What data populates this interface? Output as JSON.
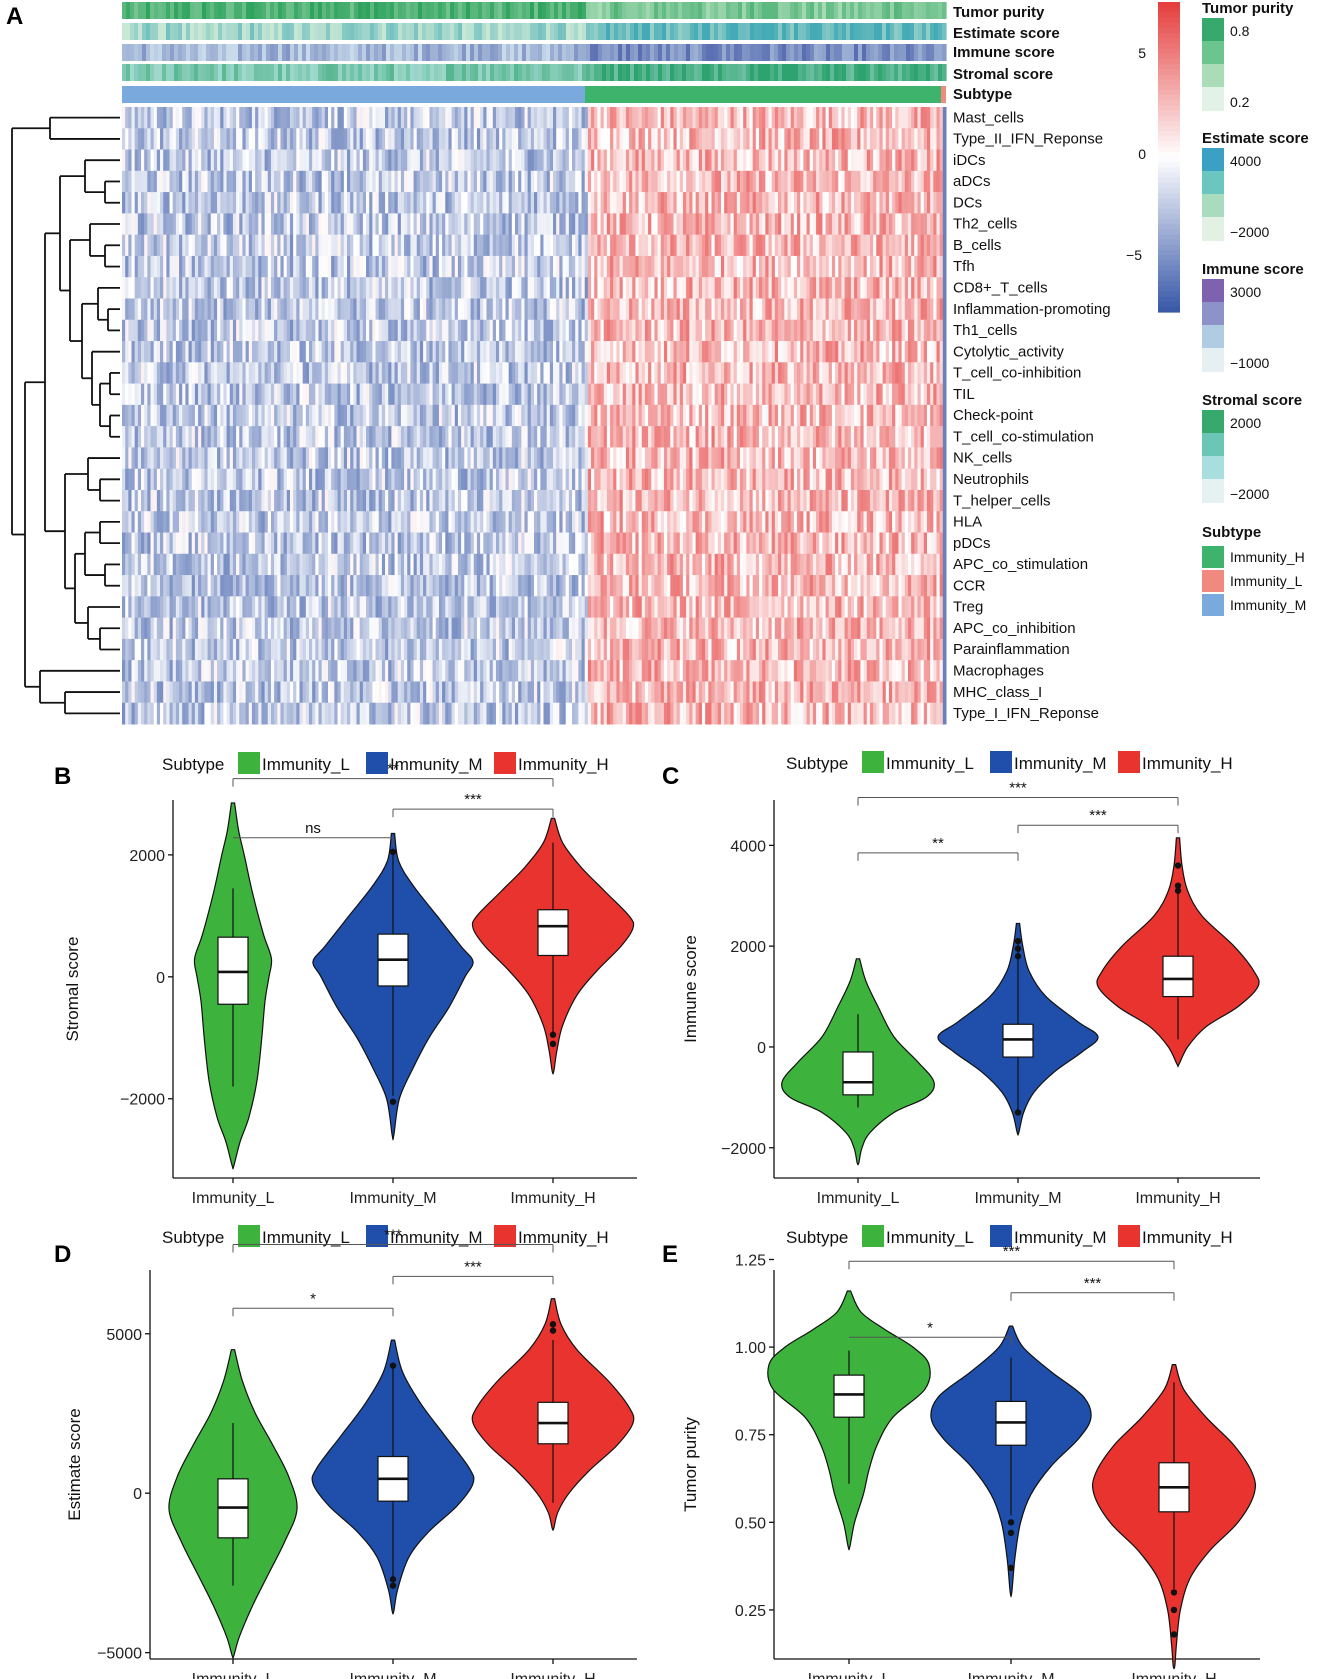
{
  "colors": {
    "immunity_l": "#3db33d",
    "immunity_m": "#1f4faa",
    "immunity_h": "#e8332f",
    "heat_low": "#3a5aa8",
    "heat_mid": "#ffffff",
    "heat_high": "#e5403f"
  },
  "panel_a": {
    "letter": "A",
    "annotation_tracks": [
      "Tumor purity",
      "Estimate score",
      "Immune score",
      "Stromal score",
      "Subtype"
    ],
    "rows": [
      "Mast_cells",
      "Type_II_IFN_Reponse",
      "iDCs",
      "aDCs",
      "DCs",
      "Th2_cells",
      "B_cells",
      "Tfh",
      "CD8+_T_cells",
      "Inflammation-promoting",
      "Th1_cells",
      "Cytolytic_activity",
      "T_cell_co-inhibition",
      "TIL",
      "Check-point",
      "T_cell_co-stimulation",
      "NK_cells",
      "Neutrophils",
      "T_helper_cells",
      "HLA",
      "pDCs",
      "APC_co_stimulation",
      "CCR",
      "Treg",
      "APC_co_inhibition",
      "Parainflammation",
      "Macrophages",
      "MHC_class_I",
      "Type_I_IFN_Reponse"
    ],
    "colorbar": {
      "ticks": [
        "5",
        "0",
        "−5"
      ]
    },
    "legends": [
      {
        "title": "Tumor purity",
        "ticks": [
          "0.8",
          "0.2"
        ],
        "colors": [
          "#38a96c",
          "#6cc48f",
          "#a9dcb7",
          "#e3f2e6"
        ]
      },
      {
        "title": "Estimate score",
        "ticks": [
          "4000",
          "−2000"
        ],
        "colors": [
          "#3aa0c4",
          "#6cc6c0",
          "#a9dcbf",
          "#e3f1e4"
        ]
      },
      {
        "title": "Immune score",
        "ticks": [
          "3000",
          "−1000"
        ],
        "colors": [
          "#7e62b0",
          "#8d93c8",
          "#b0cce3",
          "#e6f0f2"
        ]
      },
      {
        "title": "Stromal score",
        "ticks": [
          "2000",
          "−2000"
        ],
        "colors": [
          "#38a96c",
          "#6cc6b6",
          "#a9dede",
          "#e6f2f2"
        ]
      },
      {
        "title": "Subtype",
        "items": [
          "Immunity_H",
          "Immunity_L",
          "Immunity_M"
        ],
        "colors": [
          "#3db36b",
          "#f08a7e",
          "#7aa9dd"
        ]
      }
    ]
  },
  "chart_data": [
    {
      "panel": "B",
      "type": "violin",
      "legend_title": "Subtype",
      "legend": [
        "Immunity_L",
        "Immunity_M",
        "Immunity_H"
      ],
      "categories": [
        "Immunity_L",
        "Immunity_M",
        "Immunity_H"
      ],
      "ylabel": "Stromal score",
      "ylim": [
        -3300,
        2900
      ],
      "yticks": [
        -2000,
        0,
        2000
      ],
      "ytick_labels": [
        "−2000",
        "0",
        "2000"
      ],
      "groups": [
        {
          "name": "Immunity_L",
          "min": -3100,
          "max": 2850,
          "q1": -450,
          "median": 80,
          "q3": 650,
          "whisker_low": -1800,
          "whisker_high": 1450,
          "outliers": [],
          "peak": 0.85,
          "shape": [
            [
              2850,
              0.02
            ],
            [
              2400,
              0.07
            ],
            [
              2000,
              0.14
            ],
            [
              1400,
              0.24
            ],
            [
              700,
              0.38
            ],
            [
              300,
              0.48
            ],
            [
              0,
              0.45
            ],
            [
              -400,
              0.4
            ],
            [
              -1000,
              0.36
            ],
            [
              -1700,
              0.3
            ],
            [
              -2300,
              0.2
            ],
            [
              -2700,
              0.09
            ],
            [
              -3100,
              0.01
            ]
          ]
        },
        {
          "name": "Immunity_M",
          "min": -2600,
          "max": 2350,
          "q1": -150,
          "median": 280,
          "q3": 700,
          "whisker_low": -1950,
          "whisker_high": 2050,
          "outliers": [
            2050,
            -2050
          ],
          "peak": 1.0,
          "shape": [
            [
              2350,
              0.02
            ],
            [
              1900,
              0.07
            ],
            [
              1500,
              0.25
            ],
            [
              1000,
              0.55
            ],
            [
              500,
              0.85
            ],
            [
              250,
              1.0
            ],
            [
              0,
              0.9
            ],
            [
              -500,
              0.7
            ],
            [
              -1000,
              0.45
            ],
            [
              -1500,
              0.25
            ],
            [
              -2000,
              0.08
            ],
            [
              -2600,
              0.01
            ]
          ]
        },
        {
          "name": "Immunity_H",
          "min": -1550,
          "max": 2600,
          "q1": 350,
          "median": 830,
          "q3": 1100,
          "whisker_low": -950,
          "whisker_high": 2200,
          "outliers": [
            -950,
            -1100
          ],
          "peak": 1.0,
          "shape": [
            [
              2600,
              0.02
            ],
            [
              2200,
              0.12
            ],
            [
              1800,
              0.35
            ],
            [
              1400,
              0.65
            ],
            [
              1000,
              0.95
            ],
            [
              800,
              1.0
            ],
            [
              500,
              0.85
            ],
            [
              100,
              0.55
            ],
            [
              -300,
              0.3
            ],
            [
              -800,
              0.12
            ],
            [
              -1200,
              0.05
            ],
            [
              -1550,
              0.01
            ]
          ]
        }
      ],
      "comparisons": [
        {
          "from": "Immunity_L",
          "to": "Immunity_H",
          "label": "**",
          "y": 3250
        },
        {
          "from": "Immunity_M",
          "to": "Immunity_H",
          "label": "***",
          "y": 2750
        },
        {
          "from": "Immunity_L",
          "to": "Immunity_M",
          "label": "ns",
          "y": 2280,
          "flat": true
        }
      ]
    },
    {
      "panel": "C",
      "type": "violin",
      "legend_title": "Subtype",
      "legend": [
        "Immunity_L",
        "Immunity_M",
        "Immunity_H"
      ],
      "categories": [
        "Immunity_L",
        "Immunity_M",
        "Immunity_H"
      ],
      "ylabel": "Immune score",
      "ylim": [
        -2600,
        4900
      ],
      "yticks": [
        -2000,
        0,
        2000,
        4000
      ],
      "ytick_labels": [
        "−2000",
        "0",
        "2000",
        "4000"
      ],
      "groups": [
        {
          "name": "Immunity_L",
          "min": -2300,
          "max": 1750,
          "q1": -950,
          "median": -700,
          "q3": -100,
          "whisker_low": -1200,
          "whisker_high": 650,
          "outliers": [],
          "peak": 0.95,
          "shape": [
            [
              1750,
              0.02
            ],
            [
              1300,
              0.1
            ],
            [
              800,
              0.25
            ],
            [
              200,
              0.45
            ],
            [
              -300,
              0.75
            ],
            [
              -700,
              0.95
            ],
            [
              -1000,
              0.85
            ],
            [
              -1300,
              0.45
            ],
            [
              -1700,
              0.15
            ],
            [
              -2000,
              0.05
            ],
            [
              -2300,
              0.01
            ]
          ]
        },
        {
          "name": "Immunity_M",
          "min": -1700,
          "max": 2450,
          "q1": -200,
          "median": 150,
          "q3": 450,
          "whisker_low": -1300,
          "whisker_high": 2100,
          "outliers": [
            2100,
            1950,
            1800,
            -1300
          ],
          "peak": 1.0,
          "shape": [
            [
              2450,
              0.02
            ],
            [
              2000,
              0.06
            ],
            [
              1500,
              0.14
            ],
            [
              1000,
              0.35
            ],
            [
              500,
              0.75
            ],
            [
              200,
              1.0
            ],
            [
              -100,
              0.8
            ],
            [
              -500,
              0.45
            ],
            [
              -900,
              0.2
            ],
            [
              -1300,
              0.07
            ],
            [
              -1700,
              0.01
            ]
          ]
        },
        {
          "name": "Immunity_H",
          "min": -350,
          "max": 4150,
          "q1": 1000,
          "median": 1350,
          "q3": 1800,
          "whisker_low": 150,
          "whisker_high": 3100,
          "outliers": [
            3600,
            3200,
            3100
          ],
          "peak": 1.0,
          "shape": [
            [
              4150,
              0.02
            ],
            [
              3600,
              0.05
            ],
            [
              3100,
              0.12
            ],
            [
              2600,
              0.3
            ],
            [
              2000,
              0.7
            ],
            [
              1500,
              0.95
            ],
            [
              1200,
              1.0
            ],
            [
              800,
              0.75
            ],
            [
              400,
              0.35
            ],
            [
              0,
              0.12
            ],
            [
              -350,
              0.01
            ]
          ]
        }
      ],
      "comparisons": [
        {
          "from": "Immunity_L",
          "to": "Immunity_H",
          "label": "***",
          "y": 4950
        },
        {
          "from": "Immunity_M",
          "to": "Immunity_H",
          "label": "***",
          "y": 4400
        },
        {
          "from": "Immunity_L",
          "to": "Immunity_M",
          "label": "**",
          "y": 3850
        }
      ]
    },
    {
      "panel": "D",
      "type": "violin",
      "legend_title": "Subtype",
      "legend": [
        "Immunity_L",
        "Immunity_M",
        "Immunity_H"
      ],
      "categories": [
        "Immunity_L",
        "Immunity_M",
        "Immunity_H"
      ],
      "ylabel": "Estimate score",
      "ylim": [
        -5200,
        7000
      ],
      "yticks": [
        -5000,
        0,
        5000
      ],
      "ytick_labels": [
        "−5000",
        "0",
        "5000"
      ],
      "groups": [
        {
          "name": "Immunity_L",
          "min": -5100,
          "max": 4500,
          "q1": -1400,
          "median": -450,
          "q3": 450,
          "whisker_low": -2900,
          "whisker_high": 2200,
          "outliers": [],
          "peak": 0.8,
          "shape": [
            [
              4500,
              0.02
            ],
            [
              3500,
              0.12
            ],
            [
              2500,
              0.28
            ],
            [
              1500,
              0.5
            ],
            [
              500,
              0.7
            ],
            [
              -500,
              0.8
            ],
            [
              -1500,
              0.65
            ],
            [
              -2500,
              0.45
            ],
            [
              -3500,
              0.25
            ],
            [
              -4500,
              0.08
            ],
            [
              -5100,
              0.01
            ]
          ]
        },
        {
          "name": "Immunity_M",
          "min": -3700,
          "max": 4800,
          "q1": -250,
          "median": 450,
          "q3": 1150,
          "whisker_low": -2700,
          "whisker_high": 3950,
          "outliers": [
            4000,
            -2700,
            -2900
          ],
          "peak": 1.0,
          "shape": [
            [
              4800,
              0.02
            ],
            [
              3800,
              0.12
            ],
            [
              2800,
              0.35
            ],
            [
              1800,
              0.65
            ],
            [
              800,
              0.95
            ],
            [
              300,
              1.0
            ],
            [
              -400,
              0.8
            ],
            [
              -1200,
              0.45
            ],
            [
              -2000,
              0.2
            ],
            [
              -3000,
              0.06
            ],
            [
              -3700,
              0.01
            ]
          ]
        },
        {
          "name": "Immunity_H",
          "min": -1100,
          "max": 6100,
          "q1": 1550,
          "median": 2200,
          "q3": 2850,
          "whisker_low": -300,
          "whisker_high": 4800,
          "outliers": [
            5300,
            5100
          ],
          "peak": 1.0,
          "shape": [
            [
              6100,
              0.02
            ],
            [
              5300,
              0.1
            ],
            [
              4500,
              0.3
            ],
            [
              3500,
              0.7
            ],
            [
              2700,
              0.95
            ],
            [
              2200,
              1.0
            ],
            [
              1500,
              0.8
            ],
            [
              700,
              0.45
            ],
            [
              0,
              0.2
            ],
            [
              -600,
              0.06
            ],
            [
              -1100,
              0.01
            ]
          ]
        }
      ],
      "comparisons": [
        {
          "from": "Immunity_L",
          "to": "Immunity_H",
          "label": "***",
          "y": 7800
        },
        {
          "from": "Immunity_M",
          "to": "Immunity_H",
          "label": "***",
          "y": 6800
        },
        {
          "from": "Immunity_L",
          "to": "Immunity_M",
          "label": "*",
          "y": 5800
        }
      ]
    },
    {
      "panel": "E",
      "type": "violin",
      "legend_title": "Subtype",
      "legend": [
        "Immunity_L",
        "Immunity_M",
        "Immunity_H"
      ],
      "categories": [
        "Immunity_L",
        "Immunity_M",
        "Immunity_H"
      ],
      "ylabel": "Tumor purity",
      "ylim": [
        0.11,
        1.22
      ],
      "yticks": [
        0.25,
        0.5,
        0.75,
        1.0,
        1.25
      ],
      "ytick_labels": [
        "0.25",
        "0.50",
        "0.75",
        "1.00",
        "1.25"
      ],
      "groups": [
        {
          "name": "Immunity_L",
          "min": 0.43,
          "max": 1.16,
          "q1": 0.8,
          "median": 0.865,
          "q3": 0.92,
          "whisker_low": 0.61,
          "whisker_high": 0.99,
          "outliers": [],
          "peak": 1.0,
          "shape": [
            [
              1.16,
              0.02
            ],
            [
              1.1,
              0.15
            ],
            [
              1.05,
              0.45
            ],
            [
              1.0,
              0.8
            ],
            [
              0.95,
              1.0
            ],
            [
              0.88,
              0.95
            ],
            [
              0.8,
              0.55
            ],
            [
              0.72,
              0.35
            ],
            [
              0.65,
              0.25
            ],
            [
              0.58,
              0.18
            ],
            [
              0.5,
              0.07
            ],
            [
              0.43,
              0.01
            ]
          ]
        },
        {
          "name": "Immunity_M",
          "min": 0.3,
          "max": 1.06,
          "q1": 0.72,
          "median": 0.785,
          "q3": 0.845,
          "whisker_low": 0.52,
          "whisker_high": 0.97,
          "outliers": [
            0.5,
            0.47,
            0.37
          ],
          "peak": 1.0,
          "shape": [
            [
              1.06,
              0.02
            ],
            [
              1.0,
              0.15
            ],
            [
              0.93,
              0.5
            ],
            [
              0.86,
              0.9
            ],
            [
              0.8,
              1.0
            ],
            [
              0.74,
              0.85
            ],
            [
              0.66,
              0.5
            ],
            [
              0.58,
              0.25
            ],
            [
              0.5,
              0.12
            ],
            [
              0.4,
              0.05
            ],
            [
              0.3,
              0.01
            ]
          ]
        },
        {
          "name": "Immunity_H",
          "min": 0.09,
          "max": 0.95,
          "q1": 0.53,
          "median": 0.6,
          "q3": 0.67,
          "whisker_low": 0.31,
          "whisker_high": 0.9,
          "outliers": [
            0.3,
            0.25,
            0.18
          ],
          "peak": 1.0,
          "shape": [
            [
              0.95,
              0.02
            ],
            [
              0.88,
              0.12
            ],
            [
              0.8,
              0.4
            ],
            [
              0.72,
              0.75
            ],
            [
              0.64,
              0.98
            ],
            [
              0.58,
              1.0
            ],
            [
              0.5,
              0.8
            ],
            [
              0.42,
              0.45
            ],
            [
              0.34,
              0.2
            ],
            [
              0.25,
              0.08
            ],
            [
              0.15,
              0.03
            ],
            [
              0.09,
              0.01
            ]
          ]
        }
      ],
      "comparisons": [
        {
          "from": "Immunity_L",
          "to": "Immunity_H",
          "label": "***",
          "y": 1.245
        },
        {
          "from": "Immunity_M",
          "to": "Immunity_H",
          "label": "***",
          "y": 1.155
        },
        {
          "from": "Immunity_L",
          "to": "Immunity_M",
          "label": "*",
          "y": 1.028,
          "flat": true
        }
      ]
    }
  ]
}
